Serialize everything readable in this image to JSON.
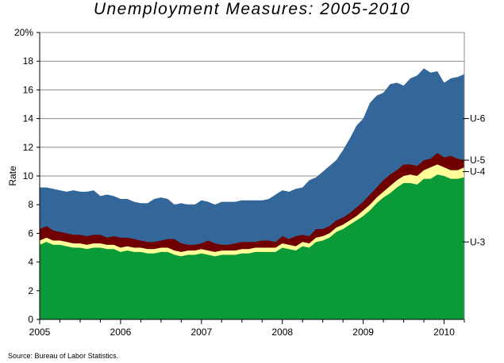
{
  "chart_data": {
    "type": "area",
    "title": "Unemployment Measures: 2005-2010",
    "ylabel": "Rate",
    "xlabel": "",
    "ylim": [
      0,
      20
    ],
    "yticks": [
      0,
      2,
      4,
      6,
      8,
      10,
      12,
      14,
      16,
      18,
      20
    ],
    "ytick_labels": [
      "0",
      "2",
      "4",
      "6",
      "8",
      "10",
      "12",
      "14",
      "16",
      "18",
      "20%"
    ],
    "xlim": [
      2005,
      2010.25
    ],
    "xticks": [
      2005,
      2006,
      2007,
      2008,
      2009,
      2010
    ],
    "xtick_labels": [
      "2005",
      "2006",
      "2007",
      "2008",
      "2009",
      "2010"
    ],
    "grid": "horizontal",
    "x": [
      2005.0,
      2005.083,
      2005.167,
      2005.25,
      2005.333,
      2005.417,
      2005.5,
      2005.583,
      2005.667,
      2005.75,
      2005.833,
      2005.917,
      2006.0,
      2006.083,
      2006.167,
      2006.25,
      2006.333,
      2006.417,
      2006.5,
      2006.583,
      2006.667,
      2006.75,
      2006.833,
      2006.917,
      2007.0,
      2007.083,
      2007.167,
      2007.25,
      2007.333,
      2007.417,
      2007.5,
      2007.583,
      2007.667,
      2007.75,
      2007.833,
      2007.917,
      2008.0,
      2008.083,
      2008.167,
      2008.25,
      2008.333,
      2008.417,
      2008.5,
      2008.583,
      2008.667,
      2008.75,
      2008.833,
      2008.917,
      2009.0,
      2009.083,
      2009.167,
      2009.25,
      2009.333,
      2009.417,
      2009.5,
      2009.583,
      2009.667,
      2009.75,
      2009.833,
      2009.917,
      2010.0,
      2010.083,
      2010.167,
      2010.25
    ],
    "series": [
      {
        "name": "U-3",
        "color": "#0a9a38",
        "values": [
          5.2,
          5.4,
          5.2,
          5.2,
          5.1,
          5.0,
          5.0,
          4.9,
          5.0,
          5.0,
          4.9,
          4.9,
          4.7,
          4.8,
          4.7,
          4.7,
          4.6,
          4.6,
          4.7,
          4.7,
          4.5,
          4.4,
          4.5,
          4.5,
          4.6,
          4.5,
          4.4,
          4.5,
          4.5,
          4.5,
          4.6,
          4.6,
          4.7,
          4.7,
          4.7,
          4.7,
          5.0,
          4.9,
          4.8,
          5.1,
          5.0,
          5.4,
          5.5,
          5.7,
          6.1,
          6.3,
          6.6,
          6.9,
          7.2,
          7.6,
          8.1,
          8.5,
          8.8,
          9.2,
          9.5,
          9.5,
          9.4,
          9.8,
          9.8,
          10.1,
          10.0,
          9.8,
          9.8,
          9.9
        ]
      },
      {
        "name": "U-4",
        "color": "#ffff99",
        "values": [
          5.5,
          5.7,
          5.5,
          5.5,
          5.4,
          5.3,
          5.3,
          5.2,
          5.3,
          5.3,
          5.2,
          5.2,
          5.0,
          5.1,
          5.0,
          5.0,
          4.9,
          4.9,
          5.0,
          5.0,
          4.8,
          4.7,
          4.8,
          4.8,
          4.9,
          4.8,
          4.7,
          4.8,
          4.8,
          4.8,
          4.9,
          4.9,
          5.0,
          5.0,
          5.0,
          5.0,
          5.3,
          5.2,
          5.1,
          5.4,
          5.3,
          5.7,
          5.8,
          6.0,
          6.4,
          6.6,
          6.9,
          7.2,
          7.6,
          8.0,
          8.5,
          8.9,
          9.3,
          9.7,
          10.0,
          10.1,
          10.0,
          10.4,
          10.6,
          10.8,
          10.6,
          10.4,
          10.4,
          10.6
        ]
      },
      {
        "name": "U-5",
        "color": "#700000",
        "values": [
          6.3,
          6.5,
          6.2,
          6.1,
          6.0,
          5.9,
          5.9,
          5.8,
          5.9,
          5.9,
          5.7,
          5.8,
          5.7,
          5.7,
          5.6,
          5.5,
          5.4,
          5.4,
          5.5,
          5.6,
          5.6,
          5.3,
          5.2,
          5.2,
          5.3,
          5.5,
          5.3,
          5.2,
          5.2,
          5.3,
          5.4,
          5.4,
          5.4,
          5.5,
          5.5,
          5.4,
          5.8,
          5.6,
          5.8,
          5.9,
          5.8,
          6.3,
          6.3,
          6.5,
          6.9,
          7.1,
          7.4,
          7.8,
          8.2,
          8.7,
          9.2,
          9.7,
          10.1,
          10.4,
          10.8,
          10.8,
          10.7,
          11.1,
          11.2,
          11.6,
          11.3,
          11.4,
          11.2,
          11.1
        ]
      },
      {
        "name": "U-6",
        "color": "#336699",
        "values": [
          9.2,
          9.2,
          9.1,
          9.0,
          8.9,
          9.0,
          8.9,
          8.9,
          9.0,
          8.6,
          8.7,
          8.6,
          8.4,
          8.4,
          8.2,
          8.1,
          8.1,
          8.4,
          8.5,
          8.4,
          8.0,
          8.1,
          8.0,
          8.0,
          8.3,
          8.2,
          8.0,
          8.2,
          8.2,
          8.2,
          8.3,
          8.3,
          8.3,
          8.3,
          8.4,
          8.7,
          9.0,
          8.9,
          9.1,
          9.2,
          9.7,
          9.9,
          10.3,
          10.7,
          11.1,
          11.8,
          12.6,
          13.5,
          14.0,
          15.1,
          15.6,
          15.8,
          16.4,
          16.5,
          16.3,
          16.8,
          17.0,
          17.5,
          17.2,
          17.3,
          16.5,
          16.8,
          16.9,
          17.1
        ]
      }
    ],
    "series_labels": [
      "U-6",
      "U-5",
      "U-4",
      "U-3"
    ],
    "source": "Source: Bureau of Labor Statistics."
  }
}
